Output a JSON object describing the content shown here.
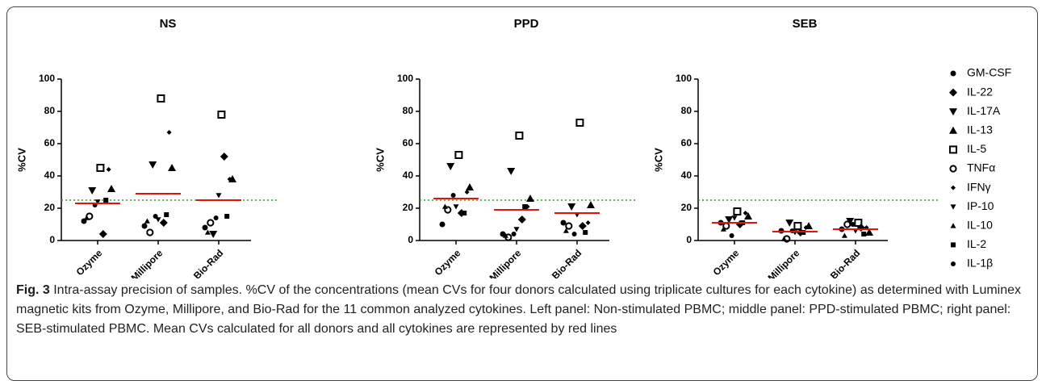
{
  "chart_data": [
    {
      "type": "scatter",
      "title": "NS",
      "y_label": "%CV",
      "categories": [
        "Ozyme",
        "Millipore",
        "Bio-Rad"
      ],
      "ylim": [
        0,
        100
      ],
      "yticks": [
        0,
        20,
        40,
        60,
        80,
        100
      ],
      "reference_line": 25,
      "reference_color": "#2e9e2e",
      "means": [
        23,
        29,
        25
      ],
      "mean_color": "#e3120b",
      "series": [
        {
          "name": "GM-CSF",
          "marker": "circle",
          "color": "#000000",
          "values": [
            12,
            9,
            8
          ]
        },
        {
          "name": "IL-22",
          "marker": "diamond",
          "color": "#000000",
          "values": [
            4,
            11,
            52
          ]
        },
        {
          "name": "IL-17A",
          "marker": "triangle-down",
          "color": "#000000",
          "values": [
            31,
            47,
            4
          ]
        },
        {
          "name": "IL-13",
          "marker": "triangle-up",
          "color": "#000000",
          "values": [
            32,
            45,
            38
          ]
        },
        {
          "name": "IL-5",
          "marker": "square-open",
          "color": "#000000",
          "values": [
            45,
            88,
            78
          ]
        },
        {
          "name": "TNFα",
          "marker": "circle-open",
          "color": "#000000",
          "values": [
            15,
            5,
            11
          ]
        },
        {
          "name": "IFNγ",
          "marker": "diamond-small",
          "color": "#000000",
          "values": [
            44,
            67,
            38
          ]
        },
        {
          "name": "IP-10",
          "marker": "triangle-down-small",
          "color": "#000000",
          "values": [
            24,
            13,
            28
          ]
        },
        {
          "name": "IL-10",
          "marker": "triangle-up-small",
          "color": "#000000",
          "values": [
            14,
            12,
            5
          ]
        },
        {
          "name": "IL-2",
          "marker": "square-small",
          "color": "#000000",
          "values": [
            25,
            16,
            15
          ]
        },
        {
          "name": "IL-1β",
          "marker": "circle-small",
          "color": "#000000",
          "values": [
            22,
            15,
            14
          ]
        }
      ]
    },
    {
      "type": "scatter",
      "title": "PPD",
      "y_label": "%CV",
      "categories": [
        "Ozyme",
        "Millipore",
        "Bio-Rad"
      ],
      "ylim": [
        0,
        100
      ],
      "yticks": [
        0,
        20,
        40,
        60,
        80,
        100
      ],
      "reference_line": 25,
      "reference_color": "#2e9e2e",
      "means": [
        26,
        19,
        17
      ],
      "mean_color": "#e3120b",
      "series": [
        {
          "name": "GM-CSF",
          "marker": "circle",
          "color": "#000000",
          "values": [
            10,
            4,
            11
          ]
        },
        {
          "name": "IL-22",
          "marker": "diamond",
          "color": "#000000",
          "values": [
            17,
            13,
            9
          ]
        },
        {
          "name": "IL-17A",
          "marker": "triangle-down",
          "color": "#000000",
          "values": [
            46,
            43,
            21
          ]
        },
        {
          "name": "IL-13",
          "marker": "triangle-up",
          "color": "#000000",
          "values": [
            33,
            26,
            22
          ]
        },
        {
          "name": "IL-5",
          "marker": "square-open",
          "color": "#000000",
          "values": [
            53,
            65,
            73
          ]
        },
        {
          "name": "TNFα",
          "marker": "circle-open",
          "color": "#000000",
          "values": [
            19,
            2,
            9
          ]
        },
        {
          "name": "IFNγ",
          "marker": "diamond-small",
          "color": "#000000",
          "values": [
            30,
            21,
            11
          ]
        },
        {
          "name": "IP-10",
          "marker": "triangle-down-small",
          "color": "#000000",
          "values": [
            21,
            7,
            16
          ]
        },
        {
          "name": "IL-10",
          "marker": "triangle-up-small",
          "color": "#000000",
          "values": [
            21,
            3,
            6
          ]
        },
        {
          "name": "IL-2",
          "marker": "square-small",
          "color": "#000000",
          "values": [
            17,
            21,
            5
          ]
        },
        {
          "name": "IL-1β",
          "marker": "circle-small",
          "color": "#000000",
          "values": [
            28,
            4,
            4
          ]
        }
      ]
    },
    {
      "type": "scatter",
      "title": "SEB",
      "y_label": "%CV",
      "categories": [
        "Ozyme",
        "Millipore",
        "Bio-Rad"
      ],
      "ylim": [
        0,
        100
      ],
      "yticks": [
        0,
        20,
        40,
        60,
        80,
        100
      ],
      "reference_line": 25,
      "reference_color": "#2e9e2e",
      "means": [
        11,
        5.5,
        7
      ],
      "mean_color": "#e3120b",
      "legend": "right",
      "series": [
        {
          "name": "GM-CSF",
          "marker": "circle",
          "color": "#000000",
          "values": [
            11,
            6,
            7
          ]
        },
        {
          "name": "IL-22",
          "marker": "diamond",
          "color": "#000000",
          "values": [
            10,
            5,
            8
          ]
        },
        {
          "name": "IL-17A",
          "marker": "triangle-down",
          "color": "#000000",
          "values": [
            13,
            11,
            12
          ]
        },
        {
          "name": "IL-13",
          "marker": "triangle-up",
          "color": "#000000",
          "values": [
            15,
            9,
            5
          ]
        },
        {
          "name": "IL-5",
          "marker": "square-open",
          "color": "#000000",
          "values": [
            18,
            9,
            11
          ]
        },
        {
          "name": "TNFα",
          "marker": "circle-open",
          "color": "#000000",
          "values": [
            9,
            1,
            10
          ]
        },
        {
          "name": "IFNγ",
          "marker": "diamond-small",
          "color": "#000000",
          "values": [
            17,
            8,
            8
          ]
        },
        {
          "name": "IP-10",
          "marker": "triangle-down-small",
          "color": "#000000",
          "values": [
            14,
            5,
            6
          ]
        },
        {
          "name": "IL-10",
          "marker": "triangle-up-small",
          "color": "#000000",
          "values": [
            7,
            1,
            3
          ]
        },
        {
          "name": "IL-2",
          "marker": "square-small",
          "color": "#000000",
          "values": [
            11,
            5,
            4
          ]
        },
        {
          "name": "IL-1β",
          "marker": "circle-small",
          "color": "#000000",
          "values": [
            3,
            6,
            10
          ]
        }
      ]
    }
  ],
  "caption": {
    "label": "Fig. 3",
    "text": "Intra-assay precision of samples. %CV of the concentrations (mean CVs for four donors calculated using triplicate cultures for each cytokine) as determined with Luminex magnetic kits from Ozyme, Millipore, and Bio-Rad for the 11 common analyzed cytokines. Left panel: Non-stimulated PBMC; middle panel: PPD-stimulated PBMC; right panel: SEB-stimulated PBMC. Mean CVs calculated for all donors and all cytokines are represented by red lines"
  }
}
